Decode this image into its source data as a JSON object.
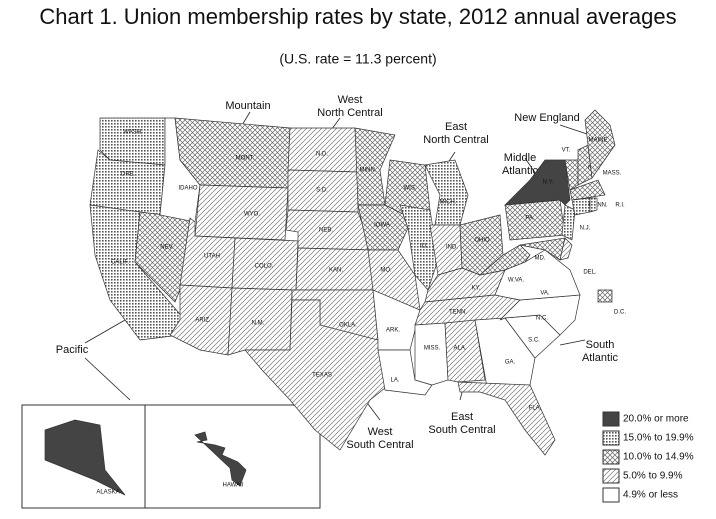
{
  "title": "Chart 1. Union membership rates by state, 2012 annual averages",
  "subtitle": "(U.S. rate = 11.3 percent)",
  "legend": [
    {
      "label": "20.0% or more",
      "pattern": "solid"
    },
    {
      "label": "15.0% to 19.9%",
      "pattern": "dots"
    },
    {
      "label": "10.0% to 14.9%",
      "pattern": "cross"
    },
    {
      "label": "5.0% to 9.9%",
      "pattern": "diagonal"
    },
    {
      "label": "4.9% or less",
      "pattern": "blank"
    }
  ],
  "regions": [
    {
      "lines": [
        "Pacific"
      ]
    },
    {
      "lines": [
        "Mountain"
      ]
    },
    {
      "lines": [
        "West",
        "North Central"
      ]
    },
    {
      "lines": [
        "East",
        "North Central"
      ]
    },
    {
      "lines": [
        "New England"
      ]
    },
    {
      "lines": [
        "Middle",
        "Atlantic"
      ]
    },
    {
      "lines": [
        "South",
        "Atlantic"
      ]
    },
    {
      "lines": [
        "East",
        "South Central"
      ]
    },
    {
      "lines": [
        "West",
        "South Central"
      ]
    }
  ],
  "states": [
    {
      "label": "WASH.",
      "class": 1
    },
    {
      "label": "ORE.",
      "class": 1
    },
    {
      "label": "CALIF.",
      "class": 1
    },
    {
      "label": "NEV.",
      "class": 2
    },
    {
      "label": "IDAHO",
      "class": 4
    },
    {
      "label": "MONT.",
      "class": 2
    },
    {
      "label": "WYO.",
      "class": 3
    },
    {
      "label": "UTAH",
      "class": 3
    },
    {
      "label": "COLO.",
      "class": 3
    },
    {
      "label": "ARIZ.",
      "class": 3
    },
    {
      "label": "N.M.",
      "class": 3
    },
    {
      "label": "N.D.",
      "class": 3
    },
    {
      "label": "S.D.",
      "class": 3
    },
    {
      "label": "NEB.",
      "class": 3
    },
    {
      "label": "KAN.",
      "class": 3
    },
    {
      "label": "OKLA.",
      "class": 3
    },
    {
      "label": "TEXAS",
      "class": 3
    },
    {
      "label": "MINN.",
      "class": 2
    },
    {
      "label": "IOWA",
      "class": 2
    },
    {
      "label": "MO.",
      "class": 3
    },
    {
      "label": "ARK.",
      "class": 4
    },
    {
      "label": "LA.",
      "class": 4
    },
    {
      "label": "WIS.",
      "class": 2
    },
    {
      "label": "MICH.",
      "class": 1
    },
    {
      "label": "ILL.",
      "class": 1
    },
    {
      "label": "IND.",
      "class": 3
    },
    {
      "label": "OHIO",
      "class": 2
    },
    {
      "label": "KY.",
      "class": 3
    },
    {
      "label": "TENN.",
      "class": 3
    },
    {
      "label": "MISS.",
      "class": 4
    },
    {
      "label": "ALA.",
      "class": 3
    },
    {
      "label": "GA.",
      "class": 4
    },
    {
      "label": "FLA.",
      "class": 3
    },
    {
      "label": "S.C.",
      "class": 4
    },
    {
      "label": "N.C.",
      "class": 4
    },
    {
      "label": "VA.",
      "class": 4
    },
    {
      "label": "W.VA.",
      "class": 2
    },
    {
      "label": "PA.",
      "class": 2
    },
    {
      "label": "N.Y.",
      "class": 0
    },
    {
      "label": "N.J.",
      "class": 1
    },
    {
      "label": "MD.",
      "class": 2
    },
    {
      "label": "DEL.",
      "class": 3
    },
    {
      "label": "D.C.",
      "class": 2
    },
    {
      "label": "VT.",
      "class": 2
    },
    {
      "label": "N.H.",
      "class": 2
    },
    {
      "label": "MAINE",
      "class": 2
    },
    {
      "label": "MASS.",
      "class": 2
    },
    {
      "label": "CONN.",
      "class": 1
    },
    {
      "label": "R.I.",
      "class": 1
    },
    {
      "label": "ALASKA",
      "class": 0
    },
    {
      "label": "HAWAII",
      "class": 0
    }
  ]
}
